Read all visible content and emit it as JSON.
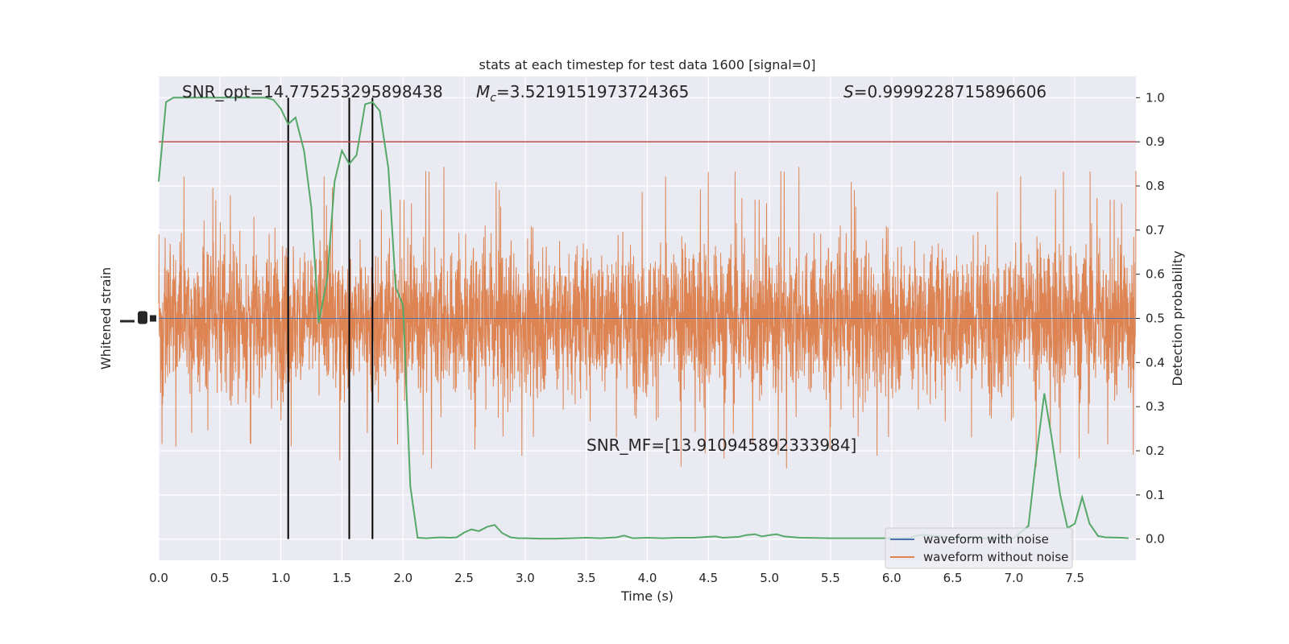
{
  "chart_data": {
    "type": "line",
    "title": "stats at each timestep for test data 1600 [signal=0]",
    "xlabel": "Time (s)",
    "ylabel_left": "Whitened strain",
    "ylabel_right": "Detection probability",
    "xlim": [
      0.0,
      8.0
    ],
    "ylim_right": [
      -0.048,
      1.048
    ],
    "x_ticks": [
      "0.0",
      "0.5",
      "1.0",
      "1.5",
      "2.0",
      "2.5",
      "3.0",
      "3.5",
      "4.0",
      "4.5",
      "5.0",
      "5.5",
      "6.0",
      "6.5",
      "7.0",
      "7.5"
    ],
    "y_ticks_right": [
      "0.0",
      "0.1",
      "0.2",
      "0.3",
      "0.4",
      "0.5",
      "0.6",
      "0.7",
      "0.8",
      "0.9",
      "1.0"
    ],
    "grid": true,
    "annotations": {
      "snr_opt": "SNR_opt=14.775253295898438",
      "mc_symbol": "M",
      "mc_sub": "c",
      "mc_value": "=3.5219151973724365",
      "s_symbol": "S",
      "s_value": "=0.9999228715896606",
      "snr_mf": "SNR_MF=[13.910945892333984]"
    },
    "threshold": 0.9,
    "vertical_lines_x": [
      1.06,
      1.56,
      1.75
    ],
    "legend": {
      "position": "lower-right",
      "entries": [
        {
          "label": "waveform with noise",
          "color": "#4c72b0"
        },
        {
          "label": "waveform without noise",
          "color": "#dd8452"
        }
      ]
    },
    "colors": {
      "noise_strain": "#dd8452",
      "clean_strain": "#4c72b0",
      "probability": "#55a868",
      "threshold": "#c44e52",
      "markers": "#000000",
      "plot_bg": "#eaeaf2",
      "grid": "#ffffff"
    },
    "series": [
      {
        "name": "waveform without noise",
        "kind": "strain-noise",
        "samples": 4096,
        "description_values": "random noise around 0, envelope approx -0.35..0.35 in probability units, with occasional spikes"
      },
      {
        "kind": "probability",
        "x": [
          0.0,
          0.06,
          0.12,
          0.19,
          0.25,
          0.31,
          0.38,
          0.44,
          0.5,
          0.56,
          0.62,
          0.69,
          0.75,
          0.81,
          0.88,
          0.94,
          1.0,
          1.06,
          1.12,
          1.19,
          1.25,
          1.31,
          1.38,
          1.44,
          1.5,
          1.56,
          1.62,
          1.69,
          1.75,
          1.81,
          1.88,
          1.94,
          2.0,
          2.06,
          2.12,
          2.19,
          2.25,
          2.31,
          2.38,
          2.44,
          2.5,
          2.56,
          2.62,
          2.69,
          2.75,
          2.81,
          2.88,
          2.94,
          3.0,
          3.12,
          3.25,
          3.38,
          3.5,
          3.62,
          3.75,
          3.81,
          3.88,
          4.0,
          4.12,
          4.25,
          4.38,
          4.5,
          4.56,
          4.62,
          4.75,
          4.81,
          4.88,
          4.94,
          5.0,
          5.06,
          5.12,
          5.25,
          5.5,
          5.75,
          6.0,
          6.12,
          6.25,
          6.5,
          6.75,
          7.0,
          7.12,
          7.19,
          7.25,
          7.31,
          7.38,
          7.44,
          7.5,
          7.56,
          7.62,
          7.69,
          7.75,
          7.88,
          7.94
        ],
        "y": [
          0.81,
          0.99,
          1.0,
          1.0,
          1.0,
          1.0,
          1.0,
          1.0,
          1.0,
          1.0,
          1.0,
          1.0,
          1.0,
          1.0,
          1.0,
          0.995,
          0.975,
          0.94,
          0.955,
          0.88,
          0.75,
          0.49,
          0.59,
          0.81,
          0.88,
          0.85,
          0.87,
          0.985,
          0.99,
          0.97,
          0.84,
          0.57,
          0.53,
          0.12,
          0.003,
          0.002,
          0.003,
          0.004,
          0.003,
          0.004,
          0.015,
          0.022,
          0.018,
          0.028,
          0.032,
          0.014,
          0.004,
          0.002,
          0.002,
          0.001,
          0.001,
          0.002,
          0.003,
          0.002,
          0.004,
          0.008,
          0.002,
          0.003,
          0.002,
          0.003,
          0.003,
          0.005,
          0.006,
          0.003,
          0.005,
          0.009,
          0.011,
          0.006,
          0.009,
          0.011,
          0.006,
          0.003,
          0.002,
          0.002,
          0.002,
          0.002,
          0.01,
          0.003,
          0.002,
          0.002,
          0.03,
          0.2,
          0.33,
          0.23,
          0.1,
          0.025,
          0.035,
          0.095,
          0.035,
          0.007,
          0.004,
          0.003,
          0.002
        ]
      }
    ]
  }
}
